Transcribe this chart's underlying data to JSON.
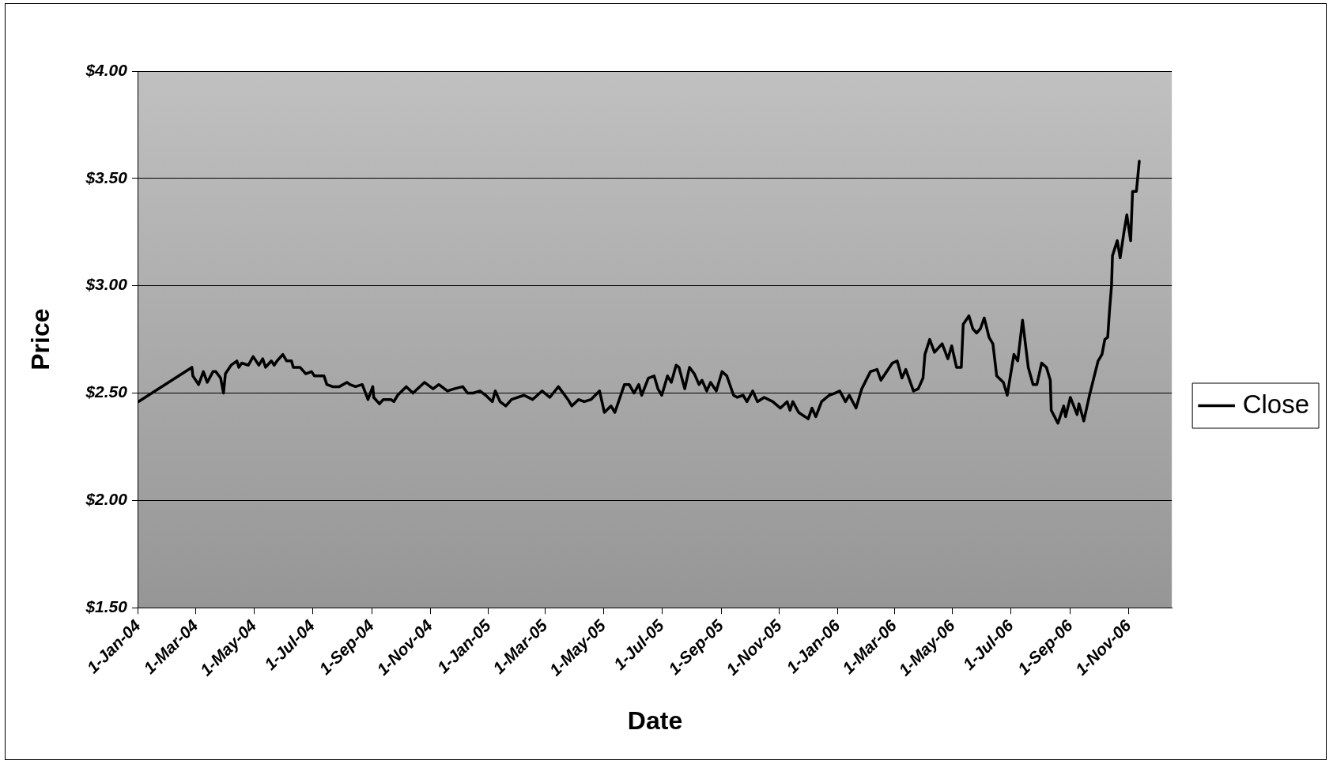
{
  "chart_data": {
    "type": "line",
    "xlabel": "Date",
    "ylabel": "Price",
    "x": [
      "2004-01-01",
      "2004-02-26",
      "2004-02-27",
      "2004-03-04",
      "2004-03-09",
      "2004-03-13",
      "2004-03-19",
      "2004-03-22",
      "2004-03-27",
      "2004-03-30",
      "2004-04-01",
      "2004-04-07",
      "2004-04-13",
      "2004-04-15",
      "2004-04-18",
      "2004-04-25",
      "2004-04-30",
      "2004-05-06",
      "2004-05-10",
      "2004-05-13",
      "2004-05-19",
      "2004-05-22",
      "2004-05-25",
      "2004-05-31",
      "2004-06-04",
      "2004-06-09",
      "2004-06-11",
      "2004-06-18",
      "2004-06-24",
      "2004-06-30",
      "2004-07-03",
      "2004-07-13",
      "2004-07-16",
      "2004-07-22",
      "2004-07-29",
      "2004-08-06",
      "2004-08-09",
      "2004-08-15",
      "2004-08-22",
      "2004-08-28",
      "2004-09-02",
      "2004-09-03",
      "2004-09-09",
      "2004-09-13",
      "2004-09-21",
      "2004-09-24",
      "2004-09-28",
      "2004-10-07",
      "2004-10-14",
      "2004-10-26",
      "2004-11-04",
      "2004-11-10",
      "2004-11-19",
      "2004-11-26",
      "2004-12-05",
      "2004-12-10",
      "2004-12-16",
      "2004-12-23",
      "2004-12-29",
      "2005-01-05",
      "2005-01-08",
      "2005-01-13",
      "2005-01-19",
      "2005-01-25",
      "2005-02-07",
      "2005-02-16",
      "2005-02-26",
      "2005-03-06",
      "2005-03-15",
      "2005-03-25",
      "2005-03-29",
      "2005-04-05",
      "2005-04-11",
      "2005-04-18",
      "2005-04-27",
      "2005-05-02",
      "2005-05-09",
      "2005-05-13",
      "2005-05-23",
      "2005-05-28",
      "2005-06-02",
      "2005-06-07",
      "2005-06-10",
      "2005-06-17",
      "2005-06-23",
      "2005-06-27",
      "2005-07-01",
      "2005-07-07",
      "2005-07-11",
      "2005-07-16",
      "2005-07-19",
      "2005-07-25",
      "2005-07-30",
      "2005-08-04",
      "2005-08-09",
      "2005-08-12",
      "2005-08-17",
      "2005-08-21",
      "2005-08-27",
      "2005-09-02",
      "2005-09-07",
      "2005-09-14",
      "2005-09-18",
      "2005-09-24",
      "2005-09-28",
      "2005-10-04",
      "2005-10-09",
      "2005-10-16",
      "2005-10-25",
      "2005-11-02",
      "2005-11-09",
      "2005-11-12",
      "2005-11-15",
      "2005-11-21",
      "2005-12-01",
      "2005-12-05",
      "2005-12-09",
      "2005-12-15",
      "2005-12-23",
      "2005-12-29",
      "2006-01-03",
      "2006-01-09",
      "2006-01-13",
      "2006-01-20",
      "2006-01-26",
      "2006-02-04",
      "2006-02-11",
      "2006-02-15",
      "2006-02-27",
      "2006-03-04",
      "2006-03-09",
      "2006-03-13",
      "2006-03-21",
      "2006-03-26",
      "2006-03-31",
      "2006-04-02",
      "2006-04-07",
      "2006-04-12",
      "2006-04-20",
      "2006-04-26",
      "2006-04-30",
      "2006-05-05",
      "2006-05-10",
      "2006-05-12",
      "2006-05-18",
      "2006-05-22",
      "2006-05-26",
      "2006-05-30",
      "2006-06-03",
      "2006-06-08",
      "2006-06-12",
      "2006-06-16",
      "2006-06-23",
      "2006-06-27",
      "2006-07-04",
      "2006-07-08",
      "2006-07-13",
      "2006-07-19",
      "2006-07-24",
      "2006-07-28",
      "2006-08-02",
      "2006-08-07",
      "2006-08-11",
      "2006-08-12",
      "2006-08-19",
      "2006-08-25",
      "2006-08-27",
      "2006-09-01",
      "2006-09-08",
      "2006-09-10",
      "2006-09-15",
      "2006-09-21",
      "2006-09-26",
      "2006-09-30",
      "2006-10-04",
      "2006-10-07",
      "2006-10-10",
      "2006-10-12",
      "2006-10-14",
      "2006-10-15",
      "2006-10-20",
      "2006-10-23",
      "2006-10-27",
      "2006-10-30",
      "2006-11-03",
      "2006-11-05",
      "2006-11-09",
      "2006-11-12"
    ],
    "series": [
      {
        "name": "Close",
        "color": "#000000",
        "values": [
          2.46,
          2.62,
          2.58,
          2.54,
          2.6,
          2.55,
          2.6,
          2.6,
          2.57,
          2.5,
          2.59,
          2.63,
          2.65,
          2.62,
          2.64,
          2.63,
          2.67,
          2.63,
          2.66,
          2.62,
          2.65,
          2.63,
          2.65,
          2.68,
          2.65,
          2.65,
          2.62,
          2.62,
          2.59,
          2.6,
          2.58,
          2.58,
          2.54,
          2.53,
          2.53,
          2.55,
          2.54,
          2.53,
          2.54,
          2.47,
          2.53,
          2.48,
          2.45,
          2.47,
          2.47,
          2.46,
          2.49,
          2.53,
          2.5,
          2.55,
          2.52,
          2.54,
          2.51,
          2.52,
          2.53,
          2.5,
          2.5,
          2.51,
          2.49,
          2.46,
          2.51,
          2.46,
          2.44,
          2.47,
          2.49,
          2.47,
          2.51,
          2.48,
          2.53,
          2.47,
          2.44,
          2.47,
          2.46,
          2.47,
          2.51,
          2.41,
          2.44,
          2.41,
          2.54,
          2.54,
          2.5,
          2.54,
          2.49,
          2.57,
          2.58,
          2.52,
          2.49,
          2.58,
          2.55,
          2.63,
          2.62,
          2.52,
          2.62,
          2.59,
          2.54,
          2.56,
          2.51,
          2.55,
          2.51,
          2.6,
          2.58,
          2.49,
          2.48,
          2.49,
          2.46,
          2.51,
          2.46,
          2.48,
          2.46,
          2.43,
          2.46,
          2.42,
          2.46,
          2.41,
          2.38,
          2.43,
          2.39,
          2.46,
          2.49,
          2.5,
          2.51,
          2.46,
          2.49,
          2.43,
          2.52,
          2.6,
          2.61,
          2.56,
          2.64,
          2.65,
          2.57,
          2.61,
          2.51,
          2.52,
          2.57,
          2.68,
          2.75,
          2.69,
          2.73,
          2.66,
          2.72,
          2.62,
          2.62,
          2.82,
          2.86,
          2.8,
          2.78,
          2.8,
          2.85,
          2.76,
          2.73,
          2.58,
          2.55,
          2.49,
          2.68,
          2.65,
          2.84,
          2.62,
          2.54,
          2.54,
          2.64,
          2.62,
          2.56,
          2.42,
          2.36,
          2.44,
          2.39,
          2.48,
          2.4,
          2.45,
          2.37,
          2.49,
          2.58,
          2.65,
          2.68,
          2.75,
          2.76,
          2.89,
          3.0,
          3.14,
          3.21,
          3.13,
          3.25,
          3.33,
          3.21,
          3.44,
          3.44,
          3.58
        ]
      }
    ],
    "xlim": [
      "2004-01-01",
      "2006-12-16"
    ],
    "xticks": [
      {
        "value": "2004-01-01",
        "label": "1-Jan-04"
      },
      {
        "value": "2004-03-01",
        "label": "1-Mar-04"
      },
      {
        "value": "2004-05-01",
        "label": "1-May-04"
      },
      {
        "value": "2004-07-01",
        "label": "1-Jul-04"
      },
      {
        "value": "2004-09-01",
        "label": "1-Sep-04"
      },
      {
        "value": "2004-11-01",
        "label": "1-Nov-04"
      },
      {
        "value": "2005-01-01",
        "label": "1-Jan-05"
      },
      {
        "value": "2005-03-01",
        "label": "1-Mar-05"
      },
      {
        "value": "2005-05-01",
        "label": "1-May-05"
      },
      {
        "value": "2005-07-01",
        "label": "1-Jul-05"
      },
      {
        "value": "2005-09-01",
        "label": "1-Sep-05"
      },
      {
        "value": "2005-11-01",
        "label": "1-Nov-05"
      },
      {
        "value": "2006-01-01",
        "label": "1-Jan-06"
      },
      {
        "value": "2006-03-01",
        "label": "1-Mar-06"
      },
      {
        "value": "2006-05-01",
        "label": "1-May-06"
      },
      {
        "value": "2006-07-01",
        "label": "1-Jul-06"
      },
      {
        "value": "2006-09-01",
        "label": "1-Sep-06"
      },
      {
        "value": "2006-11-01",
        "label": "1-Nov-06"
      }
    ],
    "ylim": [
      1.5,
      4
    ],
    "yticks": [
      {
        "value": 1.5,
        "label": "$1.50"
      },
      {
        "value": 2,
        "label": "$2.00"
      },
      {
        "value": 2.5,
        "label": "$2.50"
      },
      {
        "value": 3,
        "label": "$3.00"
      },
      {
        "value": 3.5,
        "label": "$3.50"
      },
      {
        "value": 4,
        "label": "$4.00"
      }
    ],
    "grid": "y",
    "legend": "right",
    "marker": "none",
    "line_style": "solid"
  }
}
